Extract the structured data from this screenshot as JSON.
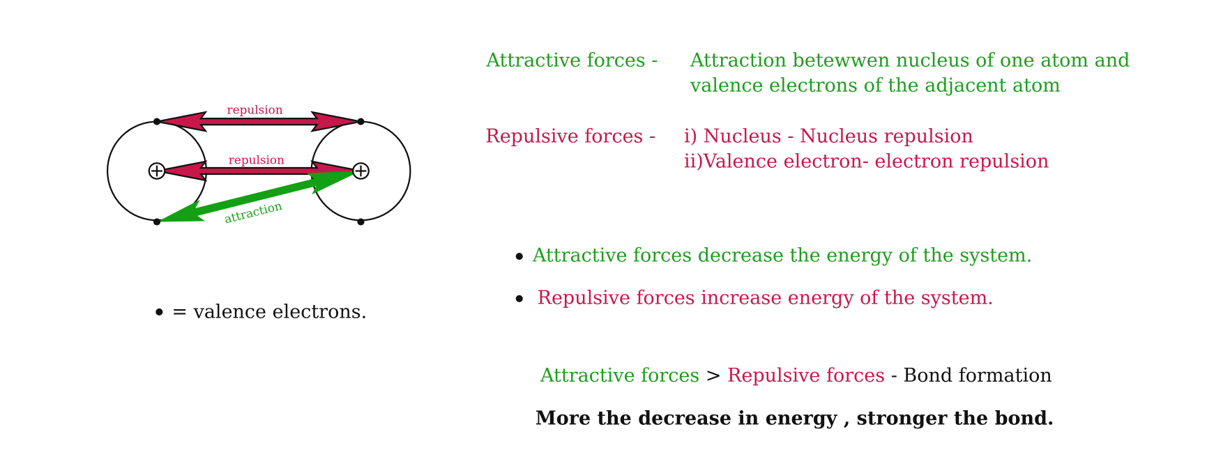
{
  "diagram": {
    "arrows": [
      {
        "label": "repulsion"
      },
      {
        "label": "repulsion"
      },
      {
        "label": "attraction"
      }
    ],
    "legend": "= valence electrons."
  },
  "attractive_forces": {
    "term": "Attractive forces -",
    "lines": [
      "Attraction betewwen nucleus of one atom and",
      "valence electrons of the adjacent atom"
    ]
  },
  "repulsive_forces": {
    "term": "Repulsive forces -",
    "lines": [
      "i) Nucleus - Nucleus repulsion",
      "ii)Valence electron- electron repulsion"
    ]
  },
  "bullets": [
    "Attractive forces decrease the energy of the system.",
    "Repulsive forces increase energy of the system."
  ],
  "comparison": {
    "left": "Attractive forces",
    "operator": ">",
    "right": "Repulsive forces",
    "result": "- Bond formation"
  },
  "conclusion": "More the decrease in energy , stronger the bond."
}
